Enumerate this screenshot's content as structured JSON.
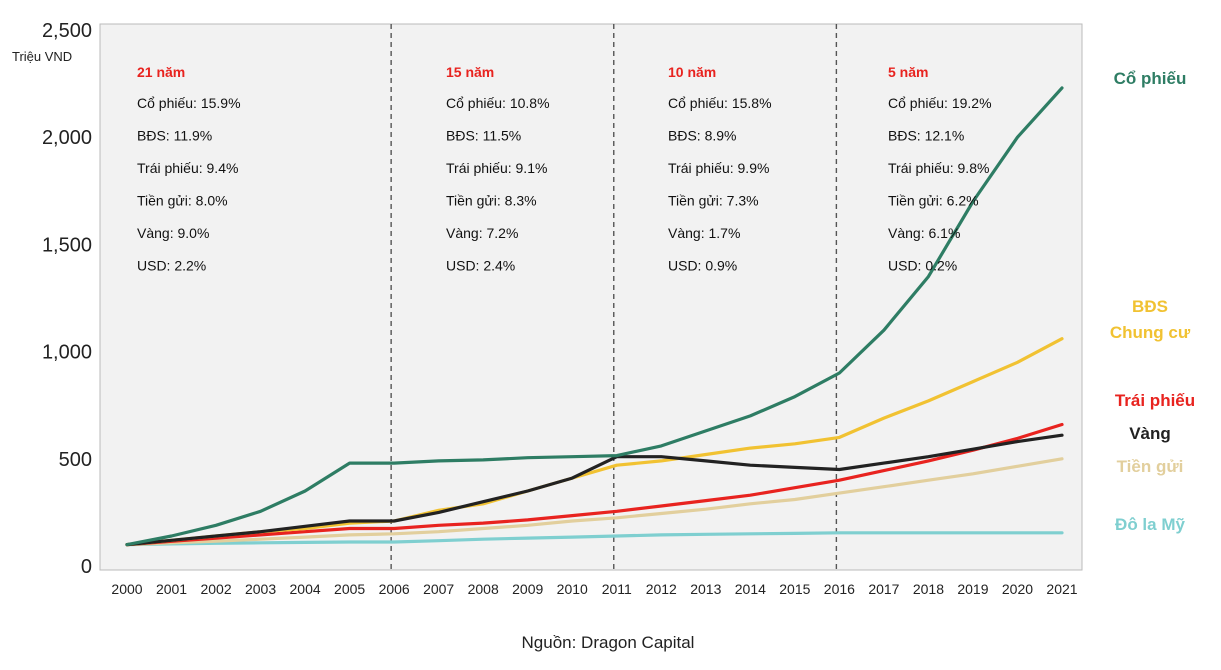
{
  "chart_data": {
    "type": "line",
    "y_unit": "Triệu VND",
    "ylim": [
      0,
      2500
    ],
    "y_ticks": [
      {
        "value": 0,
        "label": "0"
      },
      {
        "value": 500,
        "label": "500"
      },
      {
        "value": 1000,
        "label": "1,000"
      },
      {
        "value": 1500,
        "label": "1,500"
      },
      {
        "value": 2000,
        "label": "2,000"
      },
      {
        "value": 2500,
        "label": "2,500"
      }
    ],
    "x": [
      "2000",
      "2001",
      "2002",
      "2003",
      "2004",
      "2005",
      "2006",
      "2007",
      "2008",
      "2009",
      "2010",
      "2011",
      "2012",
      "2013",
      "2014",
      "2015",
      "2016",
      "2017",
      "2018",
      "2019",
      "2020",
      "2021"
    ],
    "grid": false,
    "legend_placement": "right",
    "period_dividers": [
      "2006",
      "2011",
      "2016"
    ],
    "series": [
      {
        "name": "Cổ phiếu",
        "color": "#2e7d64",
        "values": [
          100,
          140,
          190,
          255,
          350,
          480,
          480,
          490,
          495,
          505,
          510,
          515,
          560,
          630,
          700,
          790,
          900,
          1100,
          1350,
          1700,
          2000,
          2230
        ]
      },
      {
        "name": "BĐS\nChung cư",
        "color": "#f1c232",
        "values": [
          100,
          120,
          140,
          160,
          175,
          200,
          210,
          260,
          290,
          350,
          410,
          470,
          490,
          520,
          550,
          570,
          600,
          690,
          770,
          860,
          950,
          1060
        ]
      },
      {
        "name": "Trái phiếu",
        "color": "#e8231f",
        "values": [
          100,
          115,
          130,
          145,
          160,
          175,
          175,
          190,
          200,
          215,
          235,
          255,
          280,
          305,
          330,
          365,
          400,
          445,
          490,
          540,
          595,
          660
        ]
      },
      {
        "name": "Vàng",
        "color": "#222222",
        "values": [
          100,
          120,
          140,
          160,
          185,
          210,
          210,
          250,
          300,
          350,
          410,
          510,
          510,
          490,
          470,
          460,
          450,
          480,
          510,
          545,
          580,
          610
        ]
      },
      {
        "name": "Tiền gửi",
        "color": "#e2cf9d",
        "values": [
          100,
          108,
          116,
          125,
          135,
          145,
          150,
          160,
          175,
          190,
          210,
          225,
          245,
          265,
          290,
          310,
          340,
          370,
          400,
          430,
          465,
          500
        ]
      },
      {
        "name": "Đô la Mỹ",
        "color": "#7fcfd0",
        "values": [
          100,
          103,
          106,
          108,
          110,
          112,
          112,
          118,
          125,
          130,
          135,
          140,
          145,
          148,
          150,
          152,
          155,
          155,
          155,
          155,
          155,
          155
        ]
      }
    ],
    "annotations": [
      {
        "title": "21 năm",
        "lines": [
          "Cổ phiếu: 15.9%",
          "BĐS: 11.9%",
          "Trái phiếu: 9.4%",
          "Tiền gửi: 8.0%",
          "Vàng: 9.0%",
          "USD: 2.2%"
        ]
      },
      {
        "title": "15 năm",
        "lines": [
          "Cổ phiếu: 10.8%",
          "BĐS: 11.5%",
          "Trái phiếu: 9.1%",
          "Tiền gửi: 8.3%",
          "Vàng: 7.2%",
          "USD: 2.4%"
        ]
      },
      {
        "title": "10 năm",
        "lines": [
          "Cổ phiếu: 15.8%",
          "BĐS: 8.9%",
          "Trái phiếu: 9.9%",
          "Tiền gửi: 7.3%",
          "Vàng: 1.7%",
          "USD: 0.9%"
        ]
      },
      {
        "title": "5 năm",
        "lines": [
          "Cổ phiếu: 19.2%",
          "BĐS: 12.1%",
          "Trái phiếu: 9.8%",
          "Tiền gửi: 6.2%",
          "Vàng: 6.1%",
          "USD: 0.2%"
        ]
      }
    ],
    "source": "Nguồn: Dragon Capital"
  }
}
